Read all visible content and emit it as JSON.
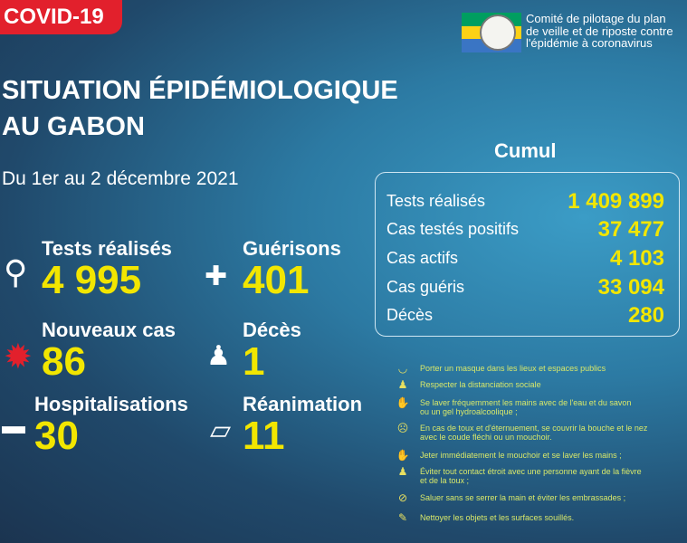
{
  "badge": "COVID-19",
  "title_line1": "SITUATION ÉPIDÉMIOLOGIQUE",
  "title_line2": "AU GABON",
  "date": "Du 1er au 2 décembre 2021",
  "org": {
    "line1": "Comité de pilotage du plan",
    "line2": "de veille et de riposte contre",
    "line3": "l'épidémie à coronavirus",
    "flag_colors": [
      "#009e60",
      "#fcd116",
      "#3a75c4"
    ]
  },
  "stats": [
    {
      "label": "Tests réalisés",
      "value": "4 995",
      "icon": "magnifier-icon"
    },
    {
      "label": "Guérisons",
      "value": "401",
      "icon": "shield-cross-icon"
    },
    {
      "label": "Nouveaux cas",
      "value": "86",
      "icon": "virus-icon"
    },
    {
      "label": "Décès",
      "value": "1",
      "icon": "person-cross-icon"
    },
    {
      "label": "Hospitalisations",
      "value": "30",
      "icon": "hospital-bed-icon"
    },
    {
      "label": "Réanimation",
      "value": "11",
      "icon": "oxygen-tank-icon"
    }
  ],
  "cumul": {
    "title": "Cumul",
    "rows": [
      {
        "label": "Tests réalisés",
        "value": "1 409 899"
      },
      {
        "label": "Cas testés positifs",
        "value": "37 477"
      },
      {
        "label": "Cas actifs",
        "value": "4 103"
      },
      {
        "label": "Cas guéris",
        "value": "33 094"
      },
      {
        "label": "Décès",
        "value": "280"
      }
    ]
  },
  "advice": [
    {
      "l1": "Porter un masque dans les lieux et espaces publics",
      "l2": "",
      "icon": "mask-icon"
    },
    {
      "l1": "Respecter la distanciation sociale",
      "l2": "",
      "icon": "distance-icon"
    },
    {
      "l1": "Se laver fréquemment les mains avec de l'eau et du savon",
      "l2": " ou un gel hydroalcoolique ;",
      "icon": "handwash-icon"
    },
    {
      "l1": "En cas de toux et d'éternuement, se couvrir la bouche et le nez",
      "l2": " avec le coude fléchi ou un mouchoir.",
      "icon": "cough-icon"
    },
    {
      "l1": "Jeter immédiatement le mouchoir et se laver les mains ;",
      "l2": "",
      "icon": "handwash-icon"
    },
    {
      "l1": "Éviter tout contact étroit avec une personne ayant de la fièvre",
      "l2": " et de la toux ;",
      "icon": "distance-icon"
    },
    {
      "l1": "Saluer sans se serrer la main et éviter les embrassades ;",
      "l2": "",
      "icon": "no-handshake-icon"
    },
    {
      "l1": "Nettoyer les objets et les surfaces souillés.",
      "l2": "",
      "icon": "cleaning-icon"
    }
  ],
  "colors": {
    "accent": "#f2e600",
    "badge": "#e2202c"
  }
}
